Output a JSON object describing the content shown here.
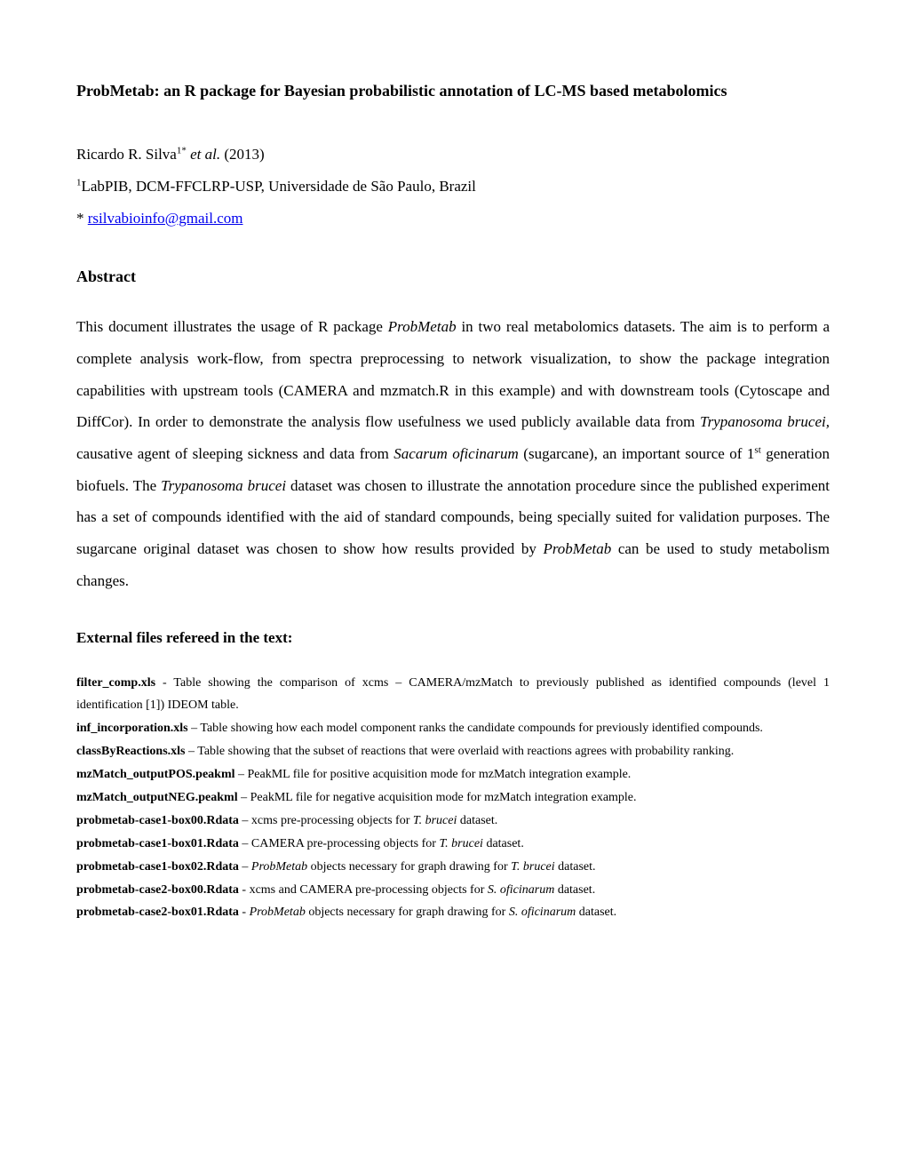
{
  "title": "ProbMetab: an R package for Bayesian probabilistic annotation of LC-MS based metabolomics",
  "authors": {
    "name": "Ricardo R. Silva",
    "sup": "1*",
    "etal": "et al.",
    "year": "(2013)"
  },
  "affiliation": {
    "sup": "1",
    "text": "LabPIB, DCM-FFCLRP-USP, Universidade de São Paulo, Brazil"
  },
  "contact": {
    "star": "*",
    "email": "rsilvabioinfo@gmail.com"
  },
  "abstract": {
    "heading": "Abstract",
    "p1a": "This document illustrates the usage of R package ",
    "p1_b_i": "ProbMetab",
    "p1c": " in two real metabolomics datasets. The aim is to perform a complete analysis work-flow, from spectra preprocessing to network visualization, to show the package integration capabilities with upstream tools (CAMERA and mzmatch.R in this example) and with downstream tools (Cytoscape and DiffCor). In order to demonstrate the analysis flow usefulness we used publicly available data from ",
    "p1_d_i": "Trypanosoma brucei,",
    "p1e": " causative agent of sleeping sickness and data from ",
    "p1_f_i": "Sacarum oficinarum",
    "p1g": " (sugarcane), an important source of 1",
    "p1_sup": "st",
    "p1h": " generation biofuels. The ",
    "p1_i_i": "Trypanosoma brucei",
    "p1j": " dataset was chosen to illustrate the annotation procedure since the published experiment has a set of compounds identified with the aid of standard compounds, being specially suited for validation purposes. The sugarcane original dataset was chosen to show how results provided by ",
    "p1_k_i": "ProbMetab",
    "p1l": " can be used to study metabolism changes."
  },
  "files": {
    "heading": "External files refereed in the text:",
    "items": [
      {
        "name": "filter_comp.xls",
        "sep": " - ",
        "desc_a": "Table showing the comparison of xcms – CAMERA/mzMatch to previously published as identified compounds (level 1 identification [1]) IDEOM table."
      },
      {
        "name": "inf_incorporation.xls",
        "sep": " – ",
        "desc_a": "Table showing how each model component ranks the candidate compounds for previously identified compounds."
      },
      {
        "name": "classByReactions.xls",
        "sep": " – ",
        "desc_a": "Table showing that the subset of reactions that were overlaid with reactions agrees with probability ranking."
      },
      {
        "name": "mzMatch_outputPOS.peakml",
        "sep": " – ",
        "desc_a": "PeakML file for positive acquisition mode for mzMatch integration example."
      },
      {
        "name": "mzMatch_outputNEG.peakml",
        "sep": " – ",
        "desc_a": "PeakML file for negative acquisition mode for mzMatch integration example."
      },
      {
        "name": "probmetab-case1-box00.Rdata",
        "sep": " – ",
        "desc_a": "xcms pre-processing objects for  ",
        "ital": "T. brucei",
        "desc_b": " dataset."
      },
      {
        "name": "probmetab-case1-box01.Rdata",
        "sep": " – ",
        "desc_a": "CAMERA pre-processing objects for ",
        "ital": "T. brucei",
        "desc_b": " dataset."
      },
      {
        "name": "probmetab-case1-box02.Rdata",
        "sep": " – ",
        "ital0": "ProbMetab",
        "desc_a": " objects necessary for graph drawing for ",
        "ital": "T. brucei",
        "desc_b": " dataset."
      },
      {
        "name": "probmetab-case2-box00.Rdata",
        "sep": " -  ",
        "desc_a": "xcms and CAMERA pre-processing objects for ",
        "ital": "S. oficinarum",
        "desc_b": " dataset."
      },
      {
        "name": "probmetab-case2-box01.Rdata",
        "sep": " - ",
        "ital0": "ProbMetab",
        "desc_a": " objects necessary for graph drawing for ",
        "ital": "S. oficinarum",
        "desc_b": " dataset."
      }
    ]
  },
  "colors": {
    "text": "#000000",
    "link": "#0000ee",
    "background": "#ffffff"
  }
}
